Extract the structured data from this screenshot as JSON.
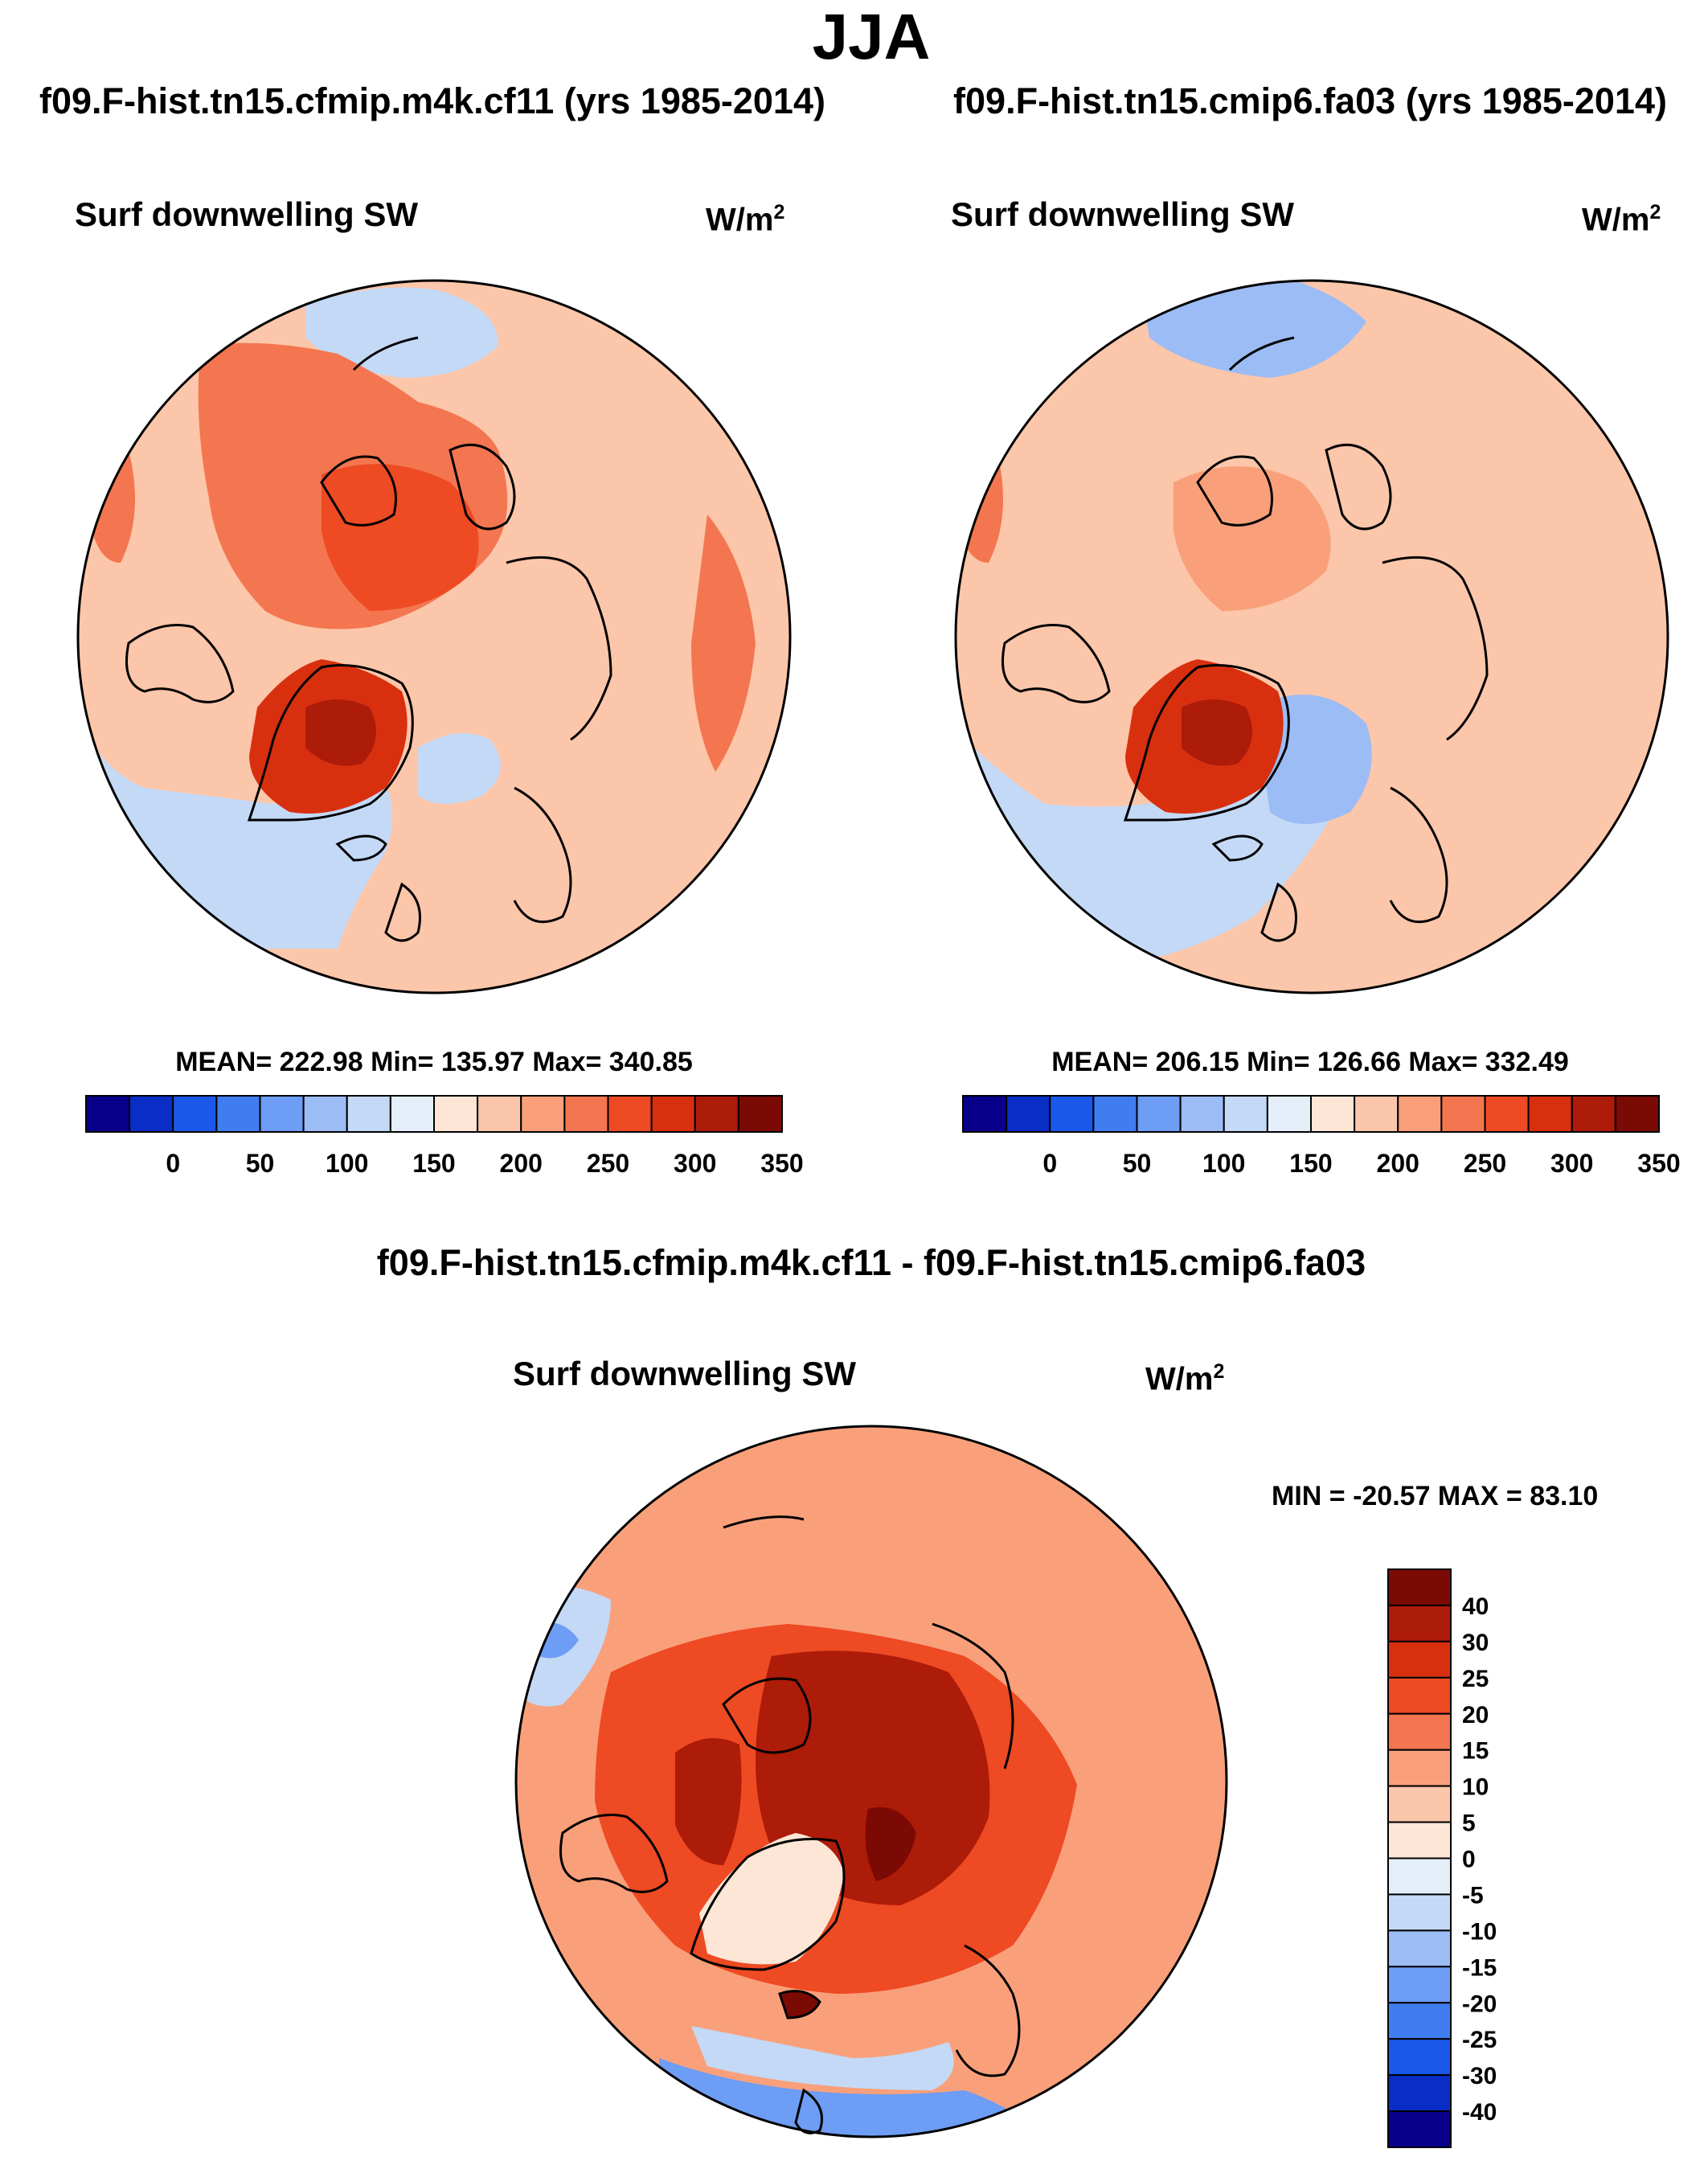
{
  "title": "JJA",
  "panels": [
    {
      "id": "left",
      "heading": "f09.F-hist.tn15.cfmip.m4k.cf11 (yrs 1985-2014)",
      "variable": "Surf downwelling SW",
      "units_base": "W/m",
      "units_exp": "2",
      "stats": "MEAN= 222.98  Min= 135.97  Max= 340.85"
    },
    {
      "id": "right",
      "heading": "f09.F-hist.tn15.cmip6.fa03 (yrs 1985-2014)",
      "variable": "Surf downwelling SW",
      "units_base": "W/m",
      "units_exp": "2",
      "stats": "MEAN= 206.15  Min= 126.66  Max= 332.49"
    }
  ],
  "diff": {
    "heading": "f09.F-hist.tn15.cfmip.m4k.cf11 - f09.F-hist.tn15.cmip6.fa03",
    "variable": "Surf downwelling SW",
    "units_base": "W/m",
    "units_exp": "2",
    "stats": "MIN = -20.57 MAX =  83.10"
  },
  "chart_data": [
    {
      "type": "heatmap",
      "projection": "north-polar-stereographic",
      "title": "f09.F-hist.tn15.cfmip.m4k.cf11 (yrs 1985-2014)",
      "variable": "Surf downwelling SW",
      "units": "W/m2",
      "mean": 222.98,
      "min": 135.97,
      "max": 340.85,
      "colorbar": {
        "orientation": "horizontal",
        "tick_labels": [
          "0",
          "50",
          "100",
          "150",
          "200",
          "250",
          "300",
          "350"
        ],
        "boundaries": [
          0,
          25,
          50,
          75,
          100,
          125,
          150,
          175,
          200,
          225,
          250,
          275,
          300,
          325,
          350
        ],
        "colors": [
          "#08008a",
          "#0a2dc6",
          "#1a58ea",
          "#3f7df1",
          "#6d9df4",
          "#9cbcf5",
          "#c4d9f6",
          "#e3eef9",
          "#fde6d6",
          "#fcc6aa",
          "#f9a07b",
          "#f37650",
          "#ee4a23",
          "#d8300f",
          "#ad1b09",
          "#7c0a04"
        ]
      }
    },
    {
      "type": "heatmap",
      "projection": "north-polar-stereographic",
      "title": "f09.F-hist.tn15.cmip6.fa03 (yrs 1985-2014)",
      "variable": "Surf downwelling SW",
      "units": "W/m2",
      "mean": 206.15,
      "min": 126.66,
      "max": 332.49,
      "colorbar": {
        "orientation": "horizontal",
        "tick_labels": [
          "0",
          "50",
          "100",
          "150",
          "200",
          "250",
          "300",
          "350"
        ],
        "boundaries": [
          0,
          25,
          50,
          75,
          100,
          125,
          150,
          175,
          200,
          225,
          250,
          275,
          300,
          325,
          350
        ],
        "colors": [
          "#08008a",
          "#0a2dc6",
          "#1a58ea",
          "#3f7df1",
          "#6d9df4",
          "#9cbcf5",
          "#c4d9f6",
          "#e3eef9",
          "#fde6d6",
          "#fcc6aa",
          "#f9a07b",
          "#f37650",
          "#ee4a23",
          "#d8300f",
          "#ad1b09",
          "#7c0a04"
        ]
      }
    },
    {
      "type": "heatmap",
      "projection": "north-polar-stereographic",
      "title": "f09.F-hist.tn15.cfmip.m4k.cf11 - f09.F-hist.tn15.cmip6.fa03",
      "variable": "Surf downwelling SW",
      "units": "W/m2",
      "min": -20.57,
      "max": 83.1,
      "colorbar": {
        "orientation": "vertical",
        "tick_labels_top_to_bottom": [
          "40",
          "30",
          "25",
          "20",
          "15",
          "10",
          "5",
          "0",
          "-5",
          "-10",
          "-15",
          "-20",
          "-25",
          "-30",
          "-40"
        ],
        "colors_top_to_bottom": [
          "#7c0a04",
          "#ad1b09",
          "#d8300f",
          "#ee4a23",
          "#f37650",
          "#f9a07b",
          "#fcc6aa",
          "#fde6d6",
          "#e3eef9",
          "#c4d9f6",
          "#9cbcf5",
          "#6d9df4",
          "#3f7df1",
          "#1a58ea",
          "#0a2dc6",
          "#08008a"
        ]
      }
    }
  ]
}
